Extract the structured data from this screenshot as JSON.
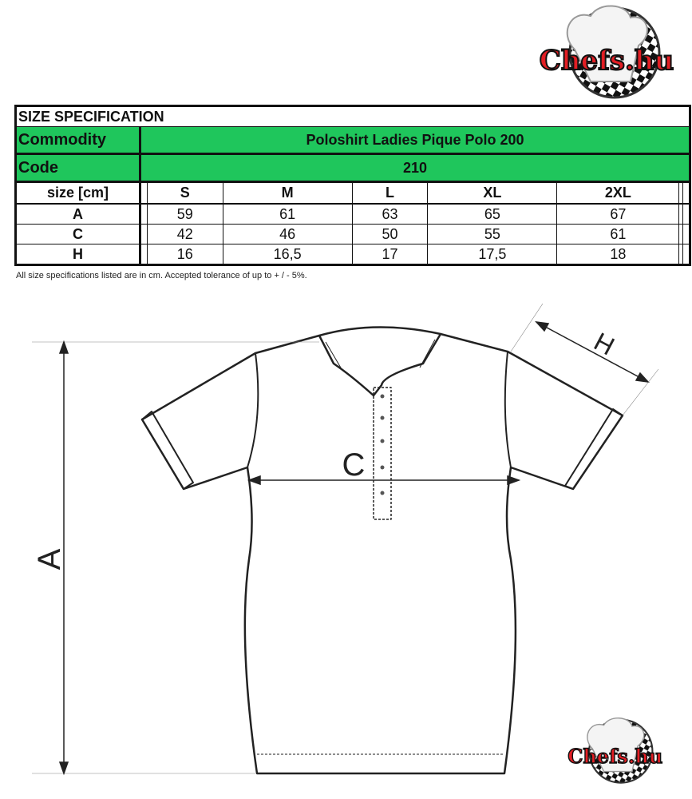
{
  "logo": {
    "text": "Chefs.hu",
    "colors": {
      "red": "#e31e24",
      "checker": "#111111"
    }
  },
  "table": {
    "title": "SIZE SPECIFICATION",
    "commodity_label": "Commodity",
    "commodity_value": "Poloshirt Ladies Pique Polo 200",
    "code_label": "Code",
    "code_value": "210",
    "header_label": "size [cm]",
    "sizes": [
      "",
      "S",
      "M",
      "L",
      "XL",
      "2XL",
      "",
      ""
    ],
    "rows": [
      {
        "label": "A",
        "values": [
          "",
          "59",
          "61",
          "63",
          "65",
          "67",
          "",
          ""
        ]
      },
      {
        "label": "C",
        "values": [
          "",
          "42",
          "46",
          "50",
          "55",
          "61",
          "",
          ""
        ]
      },
      {
        "label": "H",
        "values": [
          "",
          "16",
          "16,5",
          "17",
          "17,5",
          "18",
          "",
          ""
        ]
      }
    ],
    "accent_color": "#1fc65c"
  },
  "note": "All size specifications listed are in cm. Accepted tolerance of up to + / - 5%.",
  "diagram": {
    "label_a": "A",
    "label_c": "C",
    "label_h": "H"
  }
}
